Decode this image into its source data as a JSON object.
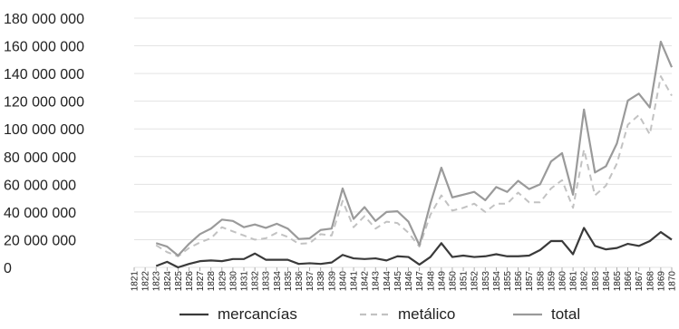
{
  "chart_data": {
    "type": "line",
    "title": "",
    "xlabel": "",
    "ylabel": "",
    "ylim": [
      0,
      180000000
    ],
    "yticks": [
      0,
      20000000,
      40000000,
      60000000,
      80000000,
      100000000,
      120000000,
      140000000,
      160000000,
      180000000
    ],
    "ytick_labels": [
      "0",
      "20 000 000",
      "40 000 000",
      "60 000 000",
      "80 000 000",
      "100 000 000",
      "120 000 000",
      "140 000 000",
      "160 000 000",
      "180 000 000"
    ],
    "grid": "horizontal",
    "legend": "bottom",
    "x": [
      "1821",
      "1822",
      "1823",
      "1824",
      "1825",
      "1826",
      "1827",
      "1828",
      "1829",
      "1830",
      "1831",
      "1832",
      "1833",
      "1834",
      "1835",
      "1836",
      "1837",
      "1838",
      "1839",
      "1840",
      "1841",
      "1842",
      "1843",
      "1844",
      "1845",
      "1846",
      "1847",
      "1848",
      "1849",
      "1850",
      "1851",
      "1852",
      "1853",
      "1854",
      "1855",
      "1856",
      "1857",
      "1858",
      "1859",
      "1860",
      "1861",
      "1862",
      "1863",
      "1864",
      "1865",
      "1866",
      "1867",
      "1868",
      "1869",
      "1870"
    ],
    "series": [
      {
        "name": "mercancías",
        "color": "#3a3a3a",
        "style": "solid",
        "values": [
          null,
          null,
          1000000,
          4000000,
          0,
          2500000,
          4500000,
          5000000,
          4500000,
          6000000,
          6000000,
          10000000,
          5500000,
          5500000,
          5500000,
          2500000,
          3000000,
          2500000,
          3500000,
          9000000,
          6500000,
          6000000,
          6500000,
          5000000,
          8000000,
          7500000,
          2000000,
          7500000,
          17500000,
          7500000,
          8500000,
          7500000,
          8000000,
          9500000,
          8000000,
          8000000,
          8500000,
          12500000,
          19000000,
          19000000,
          9500000,
          28500000,
          15500000,
          13000000,
          14000000,
          17000000,
          15500000,
          19000000,
          25500000,
          20000000
        ]
      },
      {
        "name": "metálico",
        "color": "#c2c2c2",
        "style": "dashed",
        "values": [
          null,
          null,
          16000000,
          11000000,
          8000000,
          14000000,
          18000000,
          21000000,
          29000000,
          26000000,
          23000000,
          20000000,
          21000000,
          25000000,
          22000000,
          17000000,
          17500000,
          24000000,
          23000000,
          48000000,
          29000000,
          37000000,
          28000000,
          33000000,
          32000000,
          25000000,
          15000000,
          38000000,
          52000000,
          41000000,
          43000000,
          46000000,
          40000000,
          46000000,
          46000000,
          54000000,
          47000000,
          47000000,
          57000000,
          63000000,
          43000000,
          85000000,
          52000000,
          59000000,
          75000000,
          103000000,
          110000000,
          96000000,
          138000000,
          124000000
        ]
      },
      {
        "name": "total",
        "color": "#9a9a9a",
        "style": "solid",
        "values": [
          null,
          null,
          17500000,
          15000000,
          8500000,
          17000000,
          24000000,
          28000000,
          34500000,
          33500000,
          29000000,
          31000000,
          28500000,
          31500000,
          28000000,
          20500000,
          21000000,
          27000000,
          28000000,
          57000000,
          35000000,
          43500000,
          33500000,
          40000000,
          40500000,
          33000000,
          16000000,
          46000000,
          72000000,
          50500000,
          52500000,
          54500000,
          48500000,
          58000000,
          54500000,
          62500000,
          56500000,
          60000000,
          76500000,
          82500000,
          52500000,
          114000000,
          68500000,
          73000000,
          89500000,
          120500000,
          125500000,
          115500000,
          163000000,
          144500000
        ]
      }
    ]
  }
}
